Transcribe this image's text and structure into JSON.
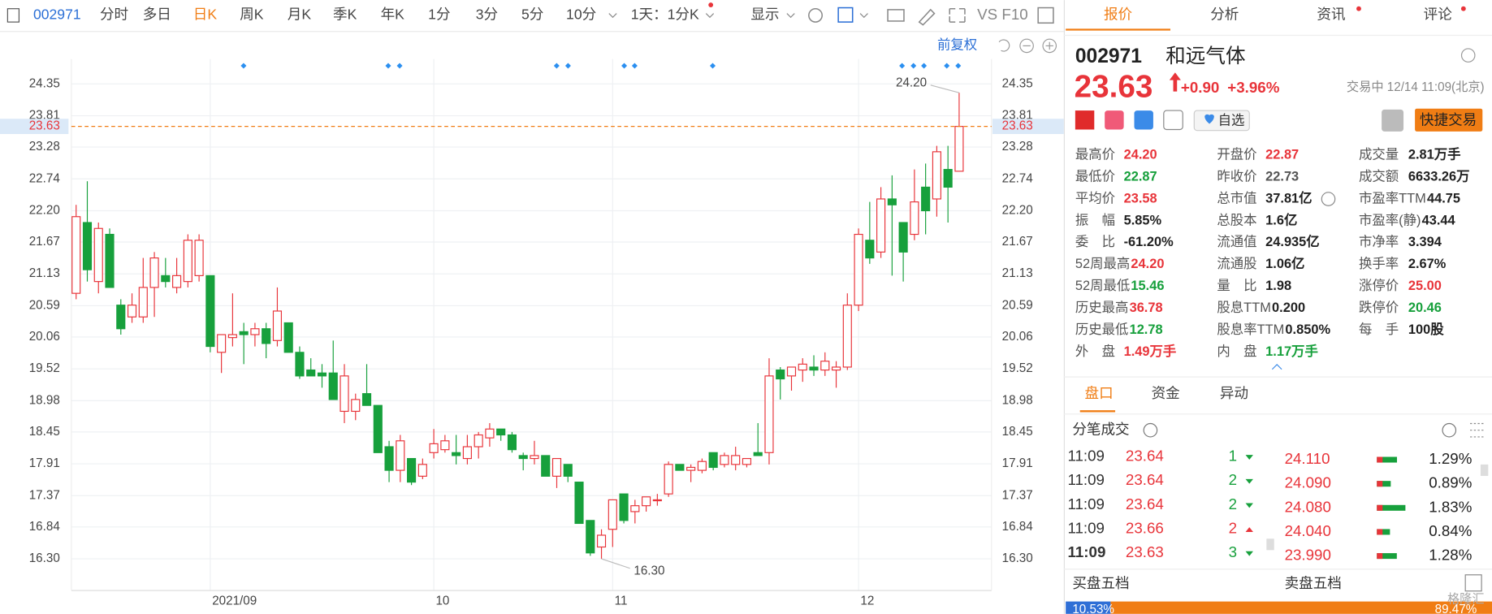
{
  "toolbar": {
    "code": "002971",
    "items": [
      "分时",
      "多日",
      "日K",
      "周K",
      "月K",
      "季K",
      "年K",
      "1分",
      "3分",
      "5分",
      "10分",
      "1天：1分K",
      "显示"
    ],
    "active": 2,
    "tools": "VS F10",
    "adjust": "前复权"
  },
  "chart_data": {
    "type": "candlestick",
    "categories": [
      null,
      null,
      null,
      null,
      null,
      null,
      null,
      null,
      null,
      null,
      null,
      null,
      "2021/09",
      null,
      null,
      null,
      null,
      null,
      null,
      null,
      null,
      null,
      null,
      null,
      null,
      null,
      null,
      null,
      null,
      null,
      null,
      null,
      "10",
      null,
      null,
      null,
      null,
      null,
      null,
      null,
      null,
      null,
      null,
      null,
      null,
      null,
      null,
      null,
      "11",
      null,
      null,
      null,
      null,
      null,
      null,
      null,
      null,
      null,
      null,
      null,
      null,
      null,
      null,
      null,
      null,
      null,
      null,
      null,
      null,
      null,
      "12",
      null,
      null,
      null,
      null,
      null,
      null,
      null,
      null,
      null
    ],
    "open": [
      20.8,
      22.0,
      21.0,
      21.8,
      20.6,
      20.4,
      20.4,
      20.9,
      21.1,
      20.9,
      21.0,
      21.1,
      21.1,
      19.8,
      20.05,
      20.15,
      20.1,
      20.2,
      20.0,
      20.3,
      19.8,
      19.5,
      19.45,
      19.45,
      18.8,
      18.8,
      19.1,
      18.9,
      18.2,
      17.8,
      18.0,
      17.7,
      18.1,
      18.15,
      18.1,
      18.0,
      18.2,
      18.35,
      18.5,
      18.4,
      18.05,
      18.0,
      18.05,
      17.7,
      17.9,
      17.6,
      16.95,
      16.5,
      16.8,
      17.4,
      17.1,
      17.2,
      17.3,
      17.4,
      17.9,
      17.8,
      17.8,
      18.1,
      17.9,
      17.9,
      17.9,
      18.1,
      18.1,
      19.5,
      19.4,
      19.5,
      19.55,
      19.5,
      19.5,
      19.55,
      20.6,
      21.7,
      21.5,
      22.4,
      22.0,
      21.8,
      22.6,
      22.4,
      22.9,
      22.87
    ],
    "high": [
      22.3,
      22.7,
      22.0,
      21.9,
      20.7,
      20.8,
      21.4,
      21.5,
      21.4,
      21.4,
      21.8,
      21.8,
      21.1,
      20.1,
      20.8,
      20.3,
      20.3,
      20.3,
      20.9,
      20.3,
      19.9,
      19.7,
      19.6,
      20.0,
      19.6,
      19.1,
      19.6,
      18.9,
      18.3,
      18.4,
      18.0,
      18.0,
      18.5,
      18.4,
      18.4,
      18.4,
      18.45,
      18.6,
      18.5,
      18.45,
      18.1,
      18.3,
      18.05,
      18.0,
      17.9,
      17.6,
      16.95,
      16.8,
      17.3,
      17.4,
      17.3,
      17.35,
      17.4,
      17.95,
      17.9,
      17.9,
      18.0,
      18.1,
      18.1,
      18.2,
      18.0,
      18.6,
      19.7,
      19.55,
      19.55,
      19.7,
      19.75,
      19.8,
      19.65,
      20.8,
      21.9,
      22.35,
      22.6,
      22.8,
      22.0,
      22.9,
      23.0,
      23.3,
      23.3,
      24.2
    ],
    "low": [
      20.7,
      21.0,
      20.8,
      20.9,
      20.1,
      20.3,
      20.3,
      20.4,
      20.9,
      20.8,
      20.9,
      21.0,
      19.8,
      19.45,
      19.9,
      19.6,
      19.9,
      19.7,
      19.9,
      19.8,
      19.35,
      19.4,
      19.2,
      19.0,
      18.6,
      18.65,
      18.9,
      18.1,
      17.6,
      17.6,
      17.55,
      17.65,
      18.0,
      18.1,
      17.9,
      17.9,
      18.0,
      18.2,
      18.3,
      18.1,
      17.8,
      17.9,
      17.7,
      17.5,
      17.6,
      16.9,
      16.35,
      16.3,
      16.5,
      16.9,
      16.9,
      17.1,
      17.2,
      17.35,
      17.8,
      17.6,
      17.75,
      17.8,
      17.85,
      17.8,
      17.85,
      18.05,
      17.9,
      19.0,
      19.15,
      19.3,
      19.4,
      19.4,
      19.2,
      19.5,
      20.5,
      21.3,
      21.4,
      21.1,
      21.0,
      21.7,
      21.8,
      22.1,
      22.0,
      22.87
    ],
    "close": [
      22.1,
      21.2,
      21.9,
      20.9,
      20.2,
      20.6,
      20.9,
      21.4,
      21.0,
      21.1,
      21.7,
      21.7,
      19.9,
      20.1,
      20.1,
      20.1,
      20.2,
      19.95,
      20.5,
      19.8,
      19.4,
      19.4,
      19.4,
      19.0,
      19.4,
      19.0,
      18.9,
      18.1,
      17.8,
      18.3,
      17.6,
      17.9,
      18.25,
      18.3,
      18.05,
      18.2,
      18.4,
      18.5,
      18.4,
      18.15,
      18.0,
      18.05,
      17.7,
      18.0,
      17.7,
      16.9,
      16.4,
      16.7,
      17.3,
      16.95,
      17.2,
      17.35,
      17.3,
      17.9,
      17.8,
      17.85,
      17.95,
      17.85,
      18.05,
      18.05,
      18.0,
      18.05,
      19.4,
      19.35,
      19.55,
      19.6,
      19.5,
      19.65,
      19.55,
      20.6,
      21.8,
      21.4,
      22.4,
      22.3,
      21.5,
      22.35,
      22.2,
      23.2,
      22.6,
      23.63
    ],
    "up_color": "#e8343a",
    "down_color": "#17a03c",
    "ylim": [
      15.77,
      24.77
    ],
    "yticks": [
      24.35,
      23.81,
      23.28,
      22.74,
      {
        "value": 22.2,
        "label": "22.20"
      },
      21.67,
      21.13,
      20.59,
      20.06,
      19.52,
      18.98,
      18.45,
      17.91,
      17.37,
      16.84,
      {
        "value": 16.3,
        "label": "16.30"
      }
    ],
    "price_line": {
      "value": 23.63,
      "label": "23.63"
    },
    "high_note": {
      "value": 24.2,
      "label": "24.20"
    },
    "low_note": {
      "value": 16.3,
      "label": "16.30"
    },
    "grid": true
  },
  "tabs": [
    "报价",
    "分析",
    "资讯",
    "评论"
  ],
  "quote": {
    "code": "002971",
    "name": "和远气体",
    "price": "23.63",
    "change": "+0.90",
    "pct": "+3.96%",
    "status": "交易中 12/14 11:09(北京)",
    "watch": "自选",
    "trade": "快捷交易"
  },
  "fields": [
    [
      {
        "label": "最高价",
        "value": "24.20",
        "color": "#e8343a"
      },
      {
        "label": "最低价",
        "value": "22.87",
        "color": "#17a03c"
      },
      {
        "label": "平均价",
        "value": "23.58",
        "color": "#e8343a"
      },
      {
        "label": "振　幅",
        "value": "5.85%",
        "color": "#222"
      },
      {
        "label": "委　比",
        "value": "-61.20%",
        "color": "#222"
      },
      {
        "label": "52周最高",
        "value": "24.20",
        "color": "#e8343a"
      },
      {
        "label": "52周最低",
        "value": "15.46",
        "color": "#17a03c"
      },
      {
        "label": "历史最高",
        "value": "36.78",
        "color": "#e8343a"
      },
      {
        "label": "历史最低",
        "value": "12.78",
        "color": "#17a03c"
      },
      {
        "label": "外　盘",
        "value": "1.49万手",
        "color": "#e8343a"
      }
    ],
    [
      {
        "label": "开盘价",
        "value": "22.87",
        "color": "#e8343a"
      },
      {
        "label": "昨收价",
        "value": "22.73",
        "color": "#555"
      },
      {
        "label": "总市值",
        "value": "37.81亿",
        "color": "#222"
      },
      {
        "label": "总股本",
        "value": "1.6亿",
        "color": "#222"
      },
      {
        "label": "流通值",
        "value": "24.935亿",
        "color": "#222"
      },
      {
        "label": "流通股",
        "value": "1.06亿",
        "color": "#222"
      },
      {
        "label": "量　比",
        "value": "1.98",
        "color": "#222"
      },
      {
        "label": "股息TTM",
        "value": "0.200",
        "color": "#222"
      },
      {
        "label": "股息率TTM",
        "value": "0.850%",
        "color": "#222"
      },
      {
        "label": "内　盘",
        "value": "1.17万手",
        "color": "#17a03c"
      }
    ],
    [
      {
        "label": "成交量",
        "value": "2.81万手",
        "color": "#222"
      },
      {
        "label": "成交额",
        "value": "6633.26万",
        "color": "#222"
      },
      {
        "label": "市盈率TTM",
        "value": "44.75",
        "color": "#222"
      },
      {
        "label": "市盈率(静)",
        "value": "43.44",
        "color": "#222"
      },
      {
        "label": "市净率",
        "value": "3.394",
        "color": "#222"
      },
      {
        "label": "换手率",
        "value": "2.67%",
        "color": "#222"
      },
      {
        "label": "涨停价",
        "value": "25.00",
        "color": "#e8343a"
      },
      {
        "label": "跌停价",
        "value": "20.46",
        "color": "#17a03c"
      },
      {
        "label": "每　手",
        "value": "100股",
        "color": "#222"
      }
    ]
  ],
  "subtabs": [
    "盘口",
    "资金",
    "异动"
  ],
  "ticks_title": "分笔成交",
  "trades": [
    {
      "time": "11:09",
      "price": "23.64",
      "vol": "1",
      "color": "#17a03c",
      "level": "24.110",
      "share": 1.29,
      "share_label": "1.29%"
    },
    {
      "time": "11:09",
      "price": "23.64",
      "vol": "2",
      "color": "#17a03c",
      "level": "24.090",
      "share": 0.89,
      "share_label": "0.89%"
    },
    {
      "time": "11:09",
      "price": "23.64",
      "vol": "2",
      "color": "#17a03c",
      "level": "24.080",
      "share": 1.83,
      "share_label": "1.83%"
    },
    {
      "time": "11:09",
      "price": "23.66",
      "vol": "2",
      "color": "#e8343a",
      "level": "24.040",
      "share": 0.84,
      "share_label": "0.84%"
    },
    {
      "time": "11:09",
      "price": "23.63",
      "vol": "3",
      "color": "#17a03c",
      "level": "23.990",
      "share": 1.28,
      "share_label": "1.28%"
    }
  ],
  "book": {
    "buy_title": "买盘五档",
    "sell_title": "卖盘五档",
    "buy": 10.53,
    "buy_label": "10.53%",
    "sell": 89.47,
    "sell_label": "89.47%"
  },
  "watermark": "格隆汇"
}
